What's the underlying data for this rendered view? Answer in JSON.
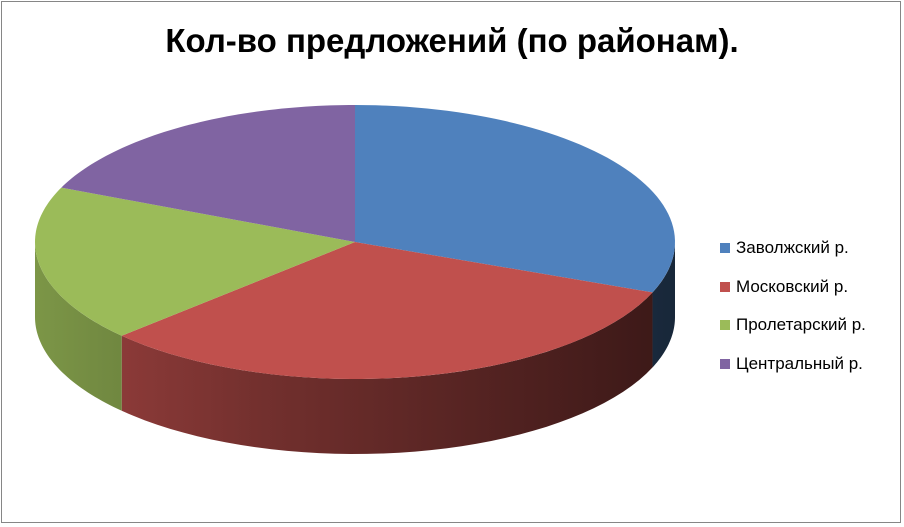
{
  "chart_data": {
    "type": "pie",
    "style": "3d",
    "title": "Кол-во предложений (по районам).",
    "categories": [
      "Заволжский р.",
      "Московский р.",
      "Пролетарский р.",
      "Центральный р."
    ],
    "values": [
      31,
      32,
      18.5,
      18.5
    ],
    "colors": [
      "#4F81BD",
      "#C0504D",
      "#9BBB59",
      "#8064A2"
    ],
    "legend": "right"
  }
}
